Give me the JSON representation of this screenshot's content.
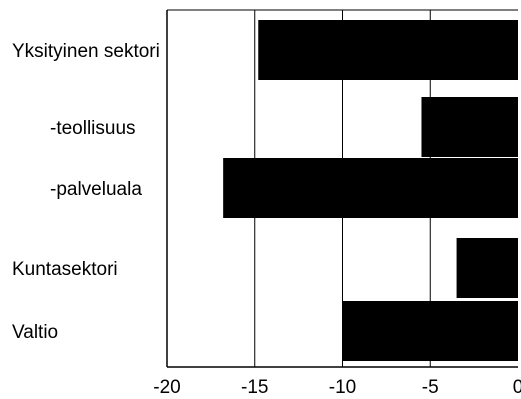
{
  "chart_data": {
    "type": "bar",
    "orientation": "horizontal",
    "categories": [
      "Yksityinen sektori",
      "-teollisuus",
      "-palveluala",
      "Kuntasektori",
      "Valtio"
    ],
    "values": [
      -14.8,
      -5.5,
      -16.8,
      -3.5,
      -10.0
    ],
    "xlim": [
      -20,
      0
    ],
    "xticks": [
      "-20",
      "-15",
      "-10",
      "-5",
      "0"
    ],
    "grid": "vertical",
    "bar_color": "#000000",
    "title": "",
    "xlabel": "",
    "ylabel": ""
  }
}
